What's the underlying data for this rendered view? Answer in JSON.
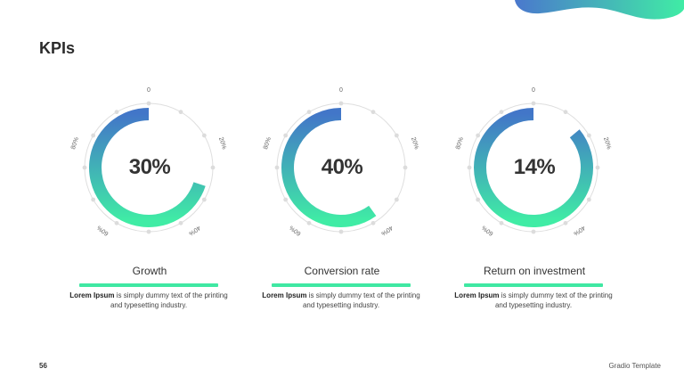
{
  "title": "KPIs",
  "ticks": [
    "0",
    "20%",
    "40%",
    "60%",
    "80%"
  ],
  "kpis": [
    {
      "value": "30%",
      "pct": 30,
      "label": "Growth",
      "desc_bold": "Lorem Ipsum",
      "desc_rest": " is simply dummy text of the printing and typesetting industry."
    },
    {
      "value": "40%",
      "pct": 40,
      "label": "Conversion rate",
      "desc_bold": "Lorem Ipsum",
      "desc_rest": " is simply dummy text of the printing and typesetting industry."
    },
    {
      "value": "14%",
      "pct": 14,
      "label": "Return on investment",
      "desc_bold": "Lorem Ipsum",
      "desc_rest": " is simply dummy text of the printing and typesetting industry."
    }
  ],
  "footer": {
    "page_number": "56",
    "brand": "Gradio Template"
  },
  "colors": {
    "gradient_top": "#4276c8",
    "gradient_bottom": "#40eca5",
    "accent_bar": "#40e8a3",
    "ring": "#dedede"
  }
}
